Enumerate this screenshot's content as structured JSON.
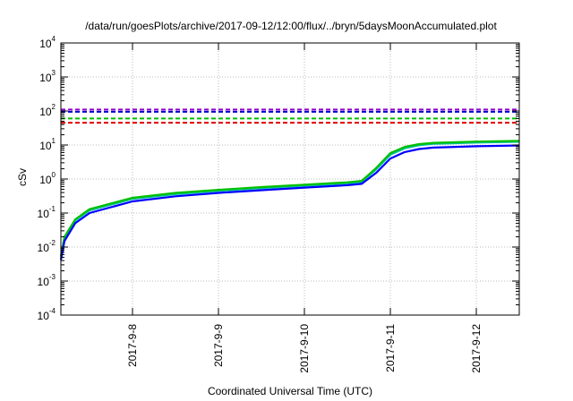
{
  "chart_data": {
    "type": "line",
    "title": "/data/run/goesPlots/archive/2017-09-12/12:00/flux/../bryn/5daysMoonAccumulated.plot",
    "xlabel": "Coordinated Universal Time (UTC)",
    "ylabel": "cSv",
    "x_unit": "days",
    "xlim": [
      "2017-09-07T04:00",
      "2017-09-12T12:00"
    ],
    "ylim": [
      0.0001,
      10000
    ],
    "y_scale": "log",
    "grid": true,
    "legend": "none",
    "x_ticks": [
      "2017-9-8",
      "2017-9-9",
      "2017-9-10",
      "2017-9-11",
      "2017-9-12"
    ],
    "y_ticks": [
      {
        "base": "10",
        "exp": "-4"
      },
      {
        "base": "10",
        "exp": "-3"
      },
      {
        "base": "10",
        "exp": "-2"
      },
      {
        "base": "10",
        "exp": "-1"
      },
      {
        "base": "10",
        "exp": "0"
      },
      {
        "base": "10",
        "exp": "1"
      },
      {
        "base": "10",
        "exp": "2"
      },
      {
        "base": "10",
        "exp": "3"
      },
      {
        "base": "10",
        "exp": "4"
      }
    ],
    "thresholds": [
      {
        "value": 110,
        "color": "#9400d3",
        "style": "dashed"
      },
      {
        "value": 95,
        "color": "#0000cd",
        "style": "dashed"
      },
      {
        "value": 60,
        "color": "#00c000",
        "style": "dashed"
      },
      {
        "value": 45,
        "color": "#e00000",
        "style": "dashed"
      }
    ],
    "series": [
      {
        "color": "#00bfa0",
        "x": [
          "2017-09-07T04:00",
          "2017-09-07T05:00",
          "2017-09-07T08:00",
          "2017-09-07T12:00",
          "2017-09-08T00:00",
          "2017-09-08T12:00",
          "2017-09-09T00:00",
          "2017-09-09T12:00",
          "2017-09-10T00:00",
          "2017-09-10T12:00",
          "2017-09-10T16:00",
          "2017-09-10T20:00",
          "2017-09-11T00:00",
          "2017-09-11T04:00",
          "2017-09-11T08:00",
          "2017-09-11T12:00",
          "2017-09-12T00:00",
          "2017-09-12T12:00"
        ],
        "y": [
          0.005,
          0.018,
          0.06,
          0.12,
          0.26,
          0.36,
          0.45,
          0.54,
          0.64,
          0.75,
          0.82,
          1.9,
          5.2,
          8.0,
          9.8,
          10.8,
          11.8,
          12.4
        ]
      },
      {
        "color": "#00c000",
        "x": [
          "2017-09-07T04:00",
          "2017-09-07T05:00",
          "2017-09-07T08:00",
          "2017-09-07T12:00",
          "2017-09-08T00:00",
          "2017-09-08T12:00",
          "2017-09-09T00:00",
          "2017-09-09T12:00",
          "2017-09-10T00:00",
          "2017-09-10T12:00",
          "2017-09-10T16:00",
          "2017-09-10T20:00",
          "2017-09-11T00:00",
          "2017-09-11T04:00",
          "2017-09-11T08:00",
          "2017-09-11T12:00",
          "2017-09-12T00:00",
          "2017-09-12T12:00"
        ],
        "y": [
          0.0055,
          0.02,
          0.065,
          0.13,
          0.28,
          0.39,
          0.48,
          0.58,
          0.68,
          0.8,
          0.88,
          2.1,
          5.8,
          8.8,
          10.6,
          11.6,
          12.6,
          13.2
        ]
      },
      {
        "color": "#0000ff",
        "x": [
          "2017-09-07T04:00",
          "2017-09-07T05:00",
          "2017-09-07T08:00",
          "2017-09-07T12:00",
          "2017-09-08T00:00",
          "2017-09-08T12:00",
          "2017-09-09T00:00",
          "2017-09-09T12:00",
          "2017-09-10T00:00",
          "2017-09-10T12:00",
          "2017-09-10T16:00",
          "2017-09-10T20:00",
          "2017-09-11T00:00",
          "2017-09-11T04:00",
          "2017-09-11T08:00",
          "2017-09-11T12:00",
          "2017-09-12T00:00",
          "2017-09-12T12:00"
        ],
        "y": [
          0.0042,
          0.015,
          0.05,
          0.1,
          0.22,
          0.31,
          0.39,
          0.47,
          0.56,
          0.66,
          0.72,
          1.5,
          4.0,
          6.2,
          7.6,
          8.4,
          9.2,
          9.7
        ]
      }
    ]
  }
}
